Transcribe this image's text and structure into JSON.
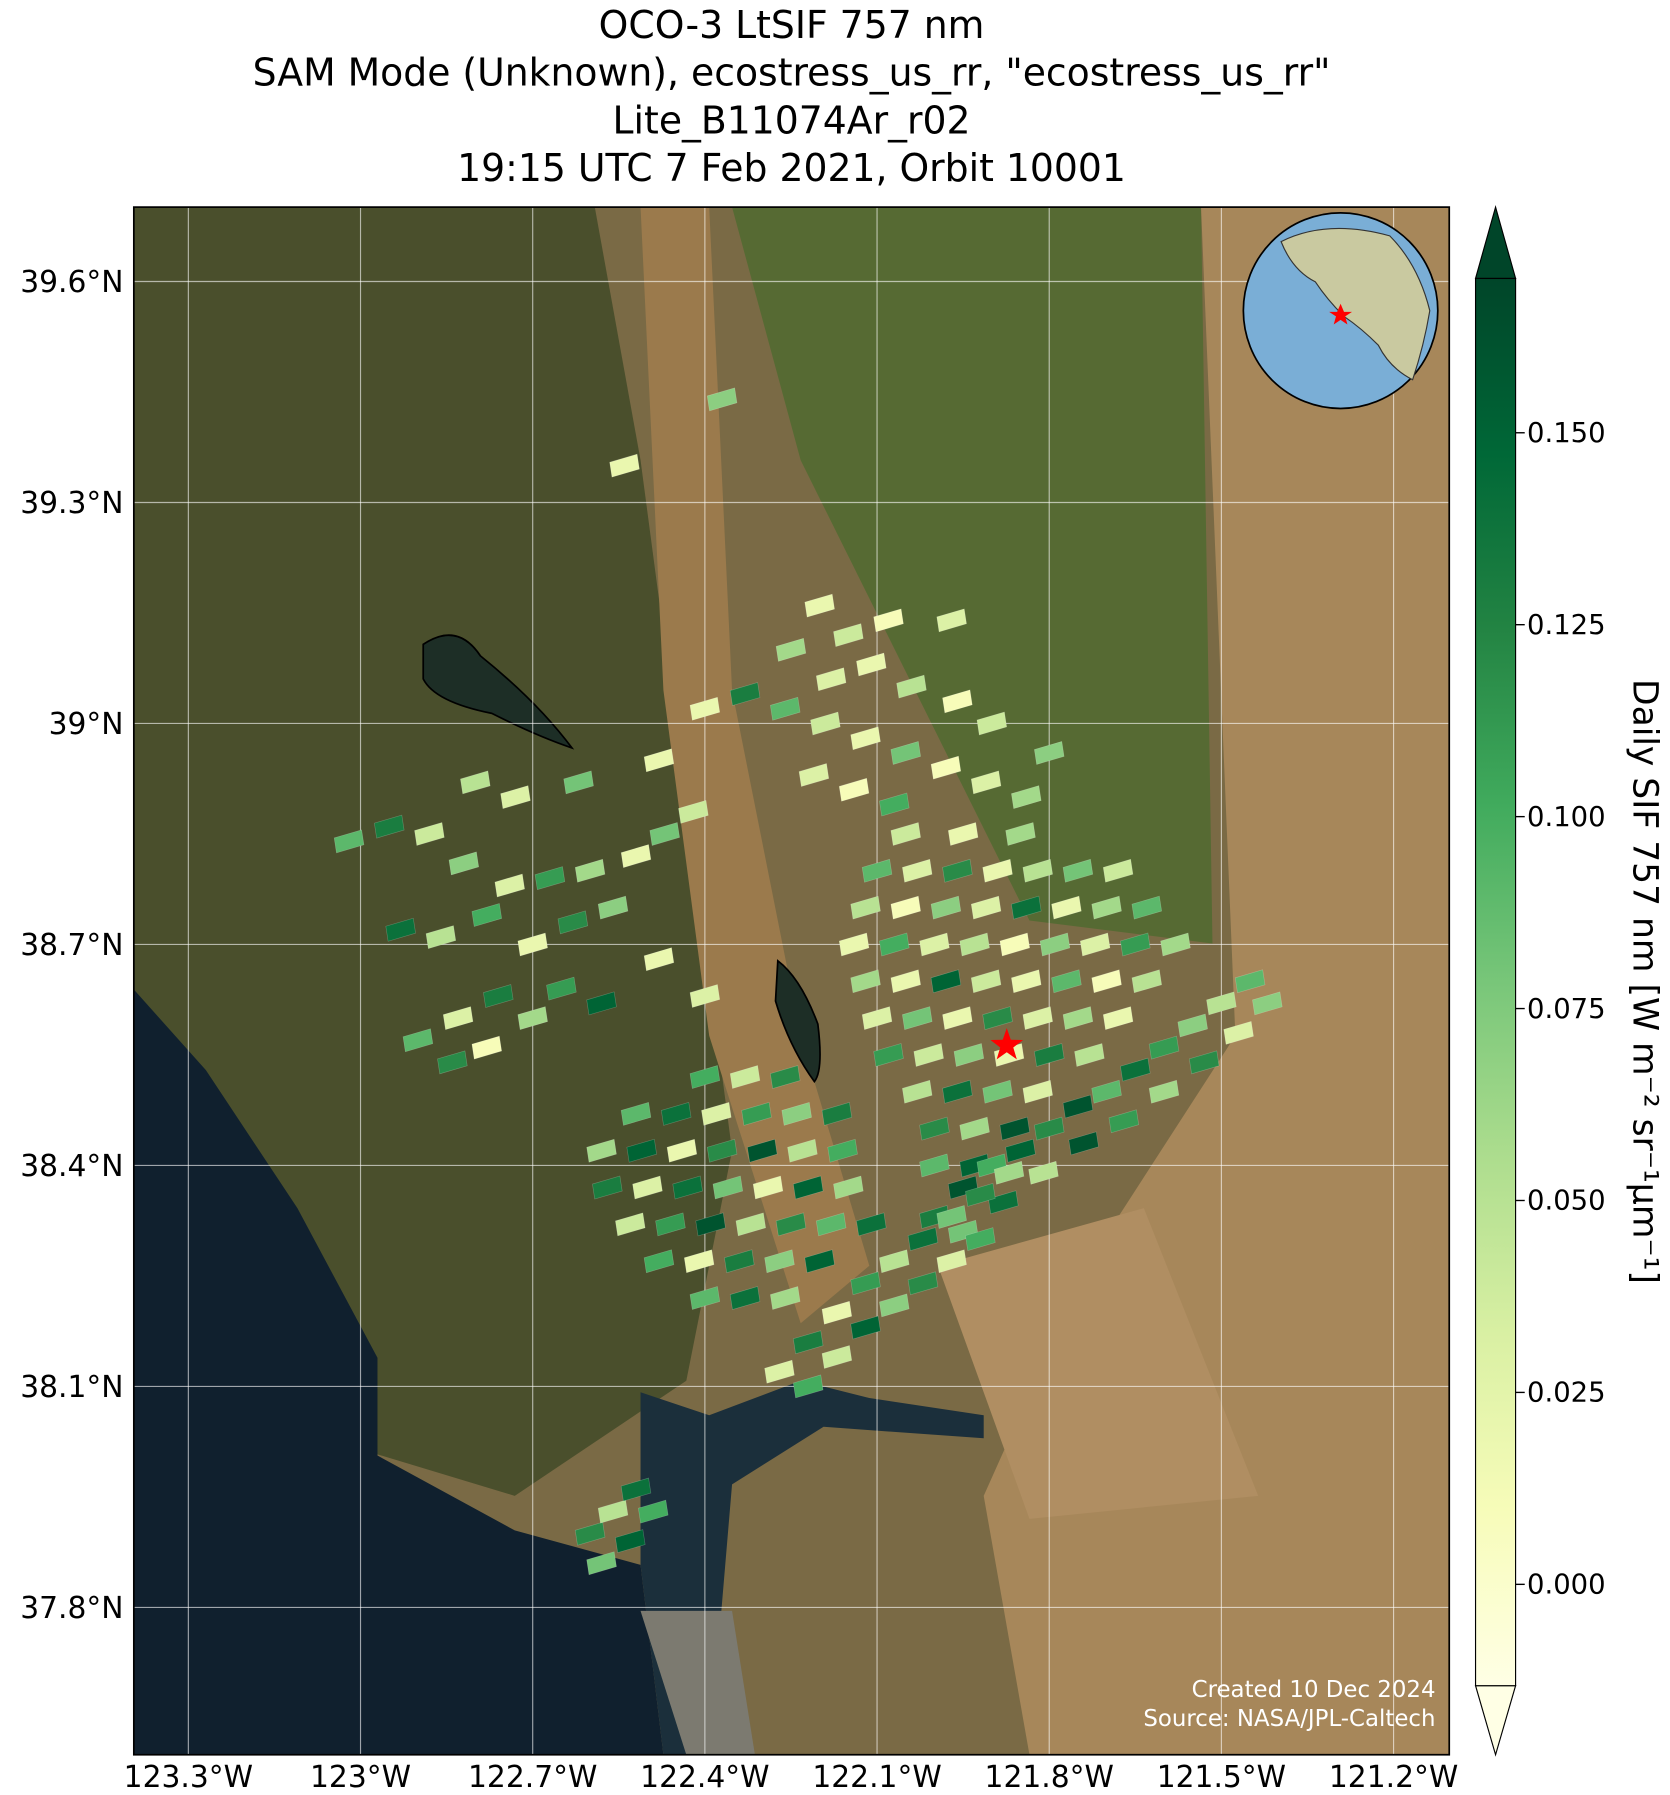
{
  "chart_data": {
    "type": "map",
    "title": [
      "OCO-3 LtSIF 757 nm",
      "SAM Mode (Unknown), ecostress_us_rr, \"ecostress_us_rr\"",
      "Lite_B11074Ar_r02",
      "19:15 UTC 7 Feb 2021, Orbit 10001"
    ],
    "xlim": [
      -123.395,
      -121.103
    ],
    "ylim": [
      37.6,
      39.701
    ],
    "xticks": [
      {
        "value": -123.3,
        "label": "123.3°W"
      },
      {
        "value": -123.0,
        "label": "123°W"
      },
      {
        "value": -122.7,
        "label": "122.7°W"
      },
      {
        "value": -122.4,
        "label": "122.4°W"
      },
      {
        "value": -122.1,
        "label": "122.1°W"
      },
      {
        "value": -121.8,
        "label": "121.8°W"
      },
      {
        "value": -121.5,
        "label": "121.5°W"
      },
      {
        "value": -121.2,
        "label": "121.2°W"
      }
    ],
    "yticks": [
      {
        "value": 39.6,
        "label": "39.6°N"
      },
      {
        "value": 39.3,
        "label": "39.3°N"
      },
      {
        "value": 39.0,
        "label": "39°N"
      },
      {
        "value": 38.7,
        "label": "38.7°N"
      },
      {
        "value": 38.4,
        "label": "38.4°N"
      },
      {
        "value": 38.1,
        "label": "38.1°N"
      },
      {
        "value": 37.8,
        "label": "37.8°N"
      }
    ],
    "grid": true,
    "colorbar_label": "Daily SIF 757 nm [W m⁻² sr⁻¹μm⁻¹]",
    "colorbar_lim": [
      -0.0132,
      0.1701
    ],
    "colorbar_ticks": [
      {
        "value": 0.0,
        "label": "0.000"
      },
      {
        "value": 0.025,
        "label": "0.025"
      },
      {
        "value": 0.05,
        "label": "0.050"
      },
      {
        "value": 0.075,
        "label": "0.075"
      },
      {
        "value": 0.1,
        "label": "0.100"
      },
      {
        "value": 0.125,
        "label": "0.125"
      },
      {
        "value": 0.15,
        "label": "0.150"
      }
    ],
    "colormap": [
      "#ffffe5",
      "#f7fcb9",
      "#d9f0a3",
      "#addd8e",
      "#78c679",
      "#41ab5d",
      "#238443",
      "#006837",
      "#004529"
    ],
    "target": {
      "lon": -121.874,
      "lat": 38.563,
      "color": "#ff0000"
    },
    "credits": [
      "Created 10 Dec 2024",
      "Source: NASA/JPL-Caltech"
    ],
    "soundings": [
      [
        -122.05,
        38.85,
        0.04
      ],
      [
        -121.95,
        38.85,
        0.02
      ],
      [
        -121.85,
        38.85,
        0.06
      ],
      [
        -122.1,
        38.8,
        0.09
      ],
      [
        -122.03,
        38.8,
        0.03
      ],
      [
        -121.96,
        38.8,
        0.12
      ],
      [
        -121.89,
        38.8,
        0.02
      ],
      [
        -121.82,
        38.8,
        0.05
      ],
      [
        -121.75,
        38.8,
        0.08
      ],
      [
        -121.68,
        38.8,
        0.04
      ],
      [
        -122.12,
        38.75,
        0.05
      ],
      [
        -122.05,
        38.75,
        0.01
      ],
      [
        -121.98,
        38.75,
        0.07
      ],
      [
        -121.91,
        38.75,
        0.03
      ],
      [
        -121.84,
        38.75,
        0.14
      ],
      [
        -121.77,
        38.75,
        0.02
      ],
      [
        -121.7,
        38.75,
        0.06
      ],
      [
        -121.63,
        38.75,
        0.09
      ],
      [
        -122.14,
        38.7,
        0.02
      ],
      [
        -122.07,
        38.7,
        0.1
      ],
      [
        -122.0,
        38.7,
        0.03
      ],
      [
        -121.93,
        38.7,
        0.05
      ],
      [
        -121.86,
        38.7,
        0.01
      ],
      [
        -121.79,
        38.7,
        0.07
      ],
      [
        -121.72,
        38.7,
        0.03
      ],
      [
        -121.65,
        38.7,
        0.11
      ],
      [
        -121.58,
        38.7,
        0.06
      ],
      [
        -122.12,
        38.65,
        0.06
      ],
      [
        -122.05,
        38.65,
        0.02
      ],
      [
        -121.98,
        38.65,
        0.15
      ],
      [
        -121.91,
        38.65,
        0.04
      ],
      [
        -121.84,
        38.65,
        0.02
      ],
      [
        -121.77,
        38.65,
        0.09
      ],
      [
        -121.7,
        38.65,
        0.01
      ],
      [
        -121.63,
        38.65,
        0.05
      ],
      [
        -122.1,
        38.6,
        0.03
      ],
      [
        -122.03,
        38.6,
        0.08
      ],
      [
        -121.96,
        38.6,
        0.02
      ],
      [
        -121.89,
        38.6,
        0.12
      ],
      [
        -121.82,
        38.6,
        0.03
      ],
      [
        -121.75,
        38.6,
        0.06
      ],
      [
        -121.68,
        38.6,
        0.02
      ],
      [
        -122.08,
        38.55,
        0.11
      ],
      [
        -122.01,
        38.55,
        0.04
      ],
      [
        -121.94,
        38.55,
        0.07
      ],
      [
        -121.87,
        38.55,
        0.02
      ],
      [
        -121.8,
        38.55,
        0.13
      ],
      [
        -121.73,
        38.55,
        0.05
      ],
      [
        -122.03,
        38.5,
        0.05
      ],
      [
        -121.96,
        38.5,
        0.14
      ],
      [
        -121.89,
        38.5,
        0.08
      ],
      [
        -121.82,
        38.5,
        0.03
      ],
      [
        -122.0,
        38.45,
        0.12
      ],
      [
        -121.93,
        38.45,
        0.06
      ],
      [
        -121.86,
        38.45,
        0.16
      ],
      [
        -122.0,
        38.4,
        0.09
      ],
      [
        -121.93,
        38.4,
        0.15
      ],
      [
        -122.0,
        38.33,
        0.13
      ],
      [
        -121.95,
        38.37,
        0.16
      ],
      [
        -121.9,
        38.4,
        0.1
      ],
      [
        -121.85,
        38.42,
        0.15
      ],
      [
        -121.8,
        38.45,
        0.12
      ],
      [
        -121.75,
        38.48,
        0.16
      ],
      [
        -121.7,
        38.5,
        0.09
      ],
      [
        -121.65,
        38.53,
        0.14
      ],
      [
        -121.6,
        38.56,
        0.11
      ],
      [
        -121.55,
        38.59,
        0.07
      ],
      [
        -121.5,
        38.62,
        0.05
      ],
      [
        -121.45,
        38.65,
        0.09
      ],
      [
        -121.95,
        38.31,
        0.08
      ],
      [
        -121.88,
        38.35,
        0.14
      ],
      [
        -121.81,
        38.39,
        0.05
      ],
      [
        -121.74,
        38.43,
        0.16
      ],
      [
        -121.67,
        38.46,
        0.11
      ],
      [
        -121.6,
        38.5,
        0.06
      ],
      [
        -121.53,
        38.54,
        0.12
      ],
      [
        -121.47,
        38.58,
        0.03
      ],
      [
        -121.42,
        38.62,
        0.07
      ],
      [
        -122.4,
        38.52,
        0.1
      ],
      [
        -122.33,
        38.52,
        0.04
      ],
      [
        -122.26,
        38.52,
        0.12
      ],
      [
        -122.52,
        38.47,
        0.09
      ],
      [
        -122.45,
        38.47,
        0.14
      ],
      [
        -122.38,
        38.47,
        0.03
      ],
      [
        -122.31,
        38.47,
        0.11
      ],
      [
        -122.24,
        38.47,
        0.07
      ],
      [
        -122.17,
        38.47,
        0.13
      ],
      [
        -122.58,
        38.42,
        0.06
      ],
      [
        -122.51,
        38.42,
        0.15
      ],
      [
        -122.44,
        38.42,
        0.02
      ],
      [
        -122.37,
        38.42,
        0.12
      ],
      [
        -122.3,
        38.42,
        0.16
      ],
      [
        -122.23,
        38.42,
        0.05
      ],
      [
        -122.16,
        38.42,
        0.1
      ],
      [
        -122.57,
        38.37,
        0.13
      ],
      [
        -122.5,
        38.37,
        0.03
      ],
      [
        -122.43,
        38.37,
        0.14
      ],
      [
        -122.36,
        38.37,
        0.08
      ],
      [
        -122.29,
        38.37,
        0.02
      ],
      [
        -122.22,
        38.37,
        0.15
      ],
      [
        -122.15,
        38.37,
        0.06
      ],
      [
        -122.53,
        38.32,
        0.04
      ],
      [
        -122.46,
        38.32,
        0.11
      ],
      [
        -122.39,
        38.32,
        0.16
      ],
      [
        -122.32,
        38.32,
        0.05
      ],
      [
        -122.25,
        38.32,
        0.12
      ],
      [
        -122.18,
        38.32,
        0.09
      ],
      [
        -122.11,
        38.32,
        0.14
      ],
      [
        -122.48,
        38.27,
        0.1
      ],
      [
        -122.41,
        38.27,
        0.02
      ],
      [
        -122.34,
        38.27,
        0.13
      ],
      [
        -122.27,
        38.27,
        0.07
      ],
      [
        -122.2,
        38.27,
        0.15
      ],
      [
        -122.4,
        38.22,
        0.09
      ],
      [
        -122.33,
        38.22,
        0.14
      ],
      [
        -122.26,
        38.22,
        0.06
      ],
      [
        -122.27,
        38.12,
        0.03
      ],
      [
        -122.22,
        38.16,
        0.13
      ],
      [
        -122.17,
        38.2,
        0.02
      ],
      [
        -122.12,
        38.24,
        0.11
      ],
      [
        -122.07,
        38.27,
        0.05
      ],
      [
        -122.02,
        38.3,
        0.14
      ],
      [
        -121.97,
        38.33,
        0.08
      ],
      [
        -121.92,
        38.36,
        0.12
      ],
      [
        -121.87,
        38.39,
        0.06
      ],
      [
        -122.22,
        38.1,
        0.1
      ],
      [
        -122.17,
        38.14,
        0.04
      ],
      [
        -122.12,
        38.18,
        0.15
      ],
      [
        -122.07,
        38.21,
        0.07
      ],
      [
        -122.02,
        38.24,
        0.12
      ],
      [
        -121.97,
        38.27,
        0.03
      ],
      [
        -121.92,
        38.3,
        0.1
      ],
      [
        -122.6,
        37.9,
        0.12
      ],
      [
        -122.56,
        37.93,
        0.05
      ],
      [
        -122.52,
        37.96,
        0.14
      ],
      [
        -122.58,
        37.86,
        0.08
      ],
      [
        -122.53,
        37.89,
        0.15
      ],
      [
        -122.49,
        37.93,
        0.1
      ],
      [
        -123.02,
        38.84,
        0.09
      ],
      [
        -122.95,
        38.86,
        0.13
      ],
      [
        -122.88,
        38.85,
        0.04
      ],
      [
        -122.82,
        38.81,
        0.07
      ],
      [
        -122.74,
        38.78,
        0.03
      ],
      [
        -122.67,
        38.79,
        0.11
      ],
      [
        -122.6,
        38.8,
        0.06
      ],
      [
        -122.52,
        38.82,
        0.02
      ],
      [
        -122.47,
        38.85,
        0.08
      ],
      [
        -122.93,
        38.72,
        0.14
      ],
      [
        -122.86,
        38.71,
        0.05
      ],
      [
        -122.78,
        38.74,
        0.1
      ],
      [
        -122.7,
        38.7,
        0.02
      ],
      [
        -122.63,
        38.73,
        0.12
      ],
      [
        -122.56,
        38.75,
        0.07
      ],
      [
        -122.9,
        38.57,
        0.09
      ],
      [
        -122.83,
        38.6,
        0.03
      ],
      [
        -122.76,
        38.63,
        0.13
      ],
      [
        -122.7,
        38.6,
        0.06
      ],
      [
        -122.65,
        38.64,
        0.11
      ],
      [
        -122.58,
        38.62,
        0.15
      ],
      [
        -122.84,
        38.54,
        0.12
      ],
      [
        -122.78,
        38.56,
        0.01
      ],
      [
        -122.8,
        38.92,
        0.05
      ],
      [
        -122.73,
        38.9,
        0.03
      ],
      [
        -122.62,
        38.92,
        0.08
      ],
      [
        -122.48,
        38.95,
        0.02
      ],
      [
        -122.42,
        38.88,
        0.04
      ],
      [
        -122.48,
        38.68,
        0.02
      ],
      [
        -122.4,
        38.63,
        0.03
      ],
      [
        -122.2,
        39.16,
        0.02
      ],
      [
        -122.15,
        39.12,
        0.04
      ],
      [
        -122.08,
        39.14,
        0.01
      ],
      [
        -122.25,
        39.1,
        0.06
      ],
      [
        -122.18,
        39.06,
        0.03
      ],
      [
        -122.11,
        39.08,
        0.02
      ],
      [
        -122.04,
        39.05,
        0.05
      ],
      [
        -121.96,
        39.03,
        0.01
      ],
      [
        -121.9,
        39.0,
        0.04
      ],
      [
        -122.33,
        39.04,
        0.13
      ],
      [
        -122.26,
        39.02,
        0.09
      ],
      [
        -122.19,
        39.0,
        0.04
      ],
      [
        -122.12,
        38.98,
        0.02
      ],
      [
        -122.05,
        38.96,
        0.08
      ],
      [
        -121.98,
        38.94,
        0.01
      ],
      [
        -121.91,
        38.92,
        0.03
      ],
      [
        -121.84,
        38.9,
        0.06
      ],
      [
        -122.4,
        39.02,
        0.02
      ],
      [
        -122.21,
        38.93,
        0.03
      ],
      [
        -122.14,
        38.91,
        0.01
      ],
      [
        -122.07,
        38.89,
        0.1
      ],
      [
        -121.8,
        38.96,
        0.07
      ],
      [
        -121.97,
        39.14,
        0.03
      ],
      [
        -122.37,
        39.44,
        0.07
      ],
      [
        -122.54,
        39.35,
        0.02
      ]
    ]
  }
}
